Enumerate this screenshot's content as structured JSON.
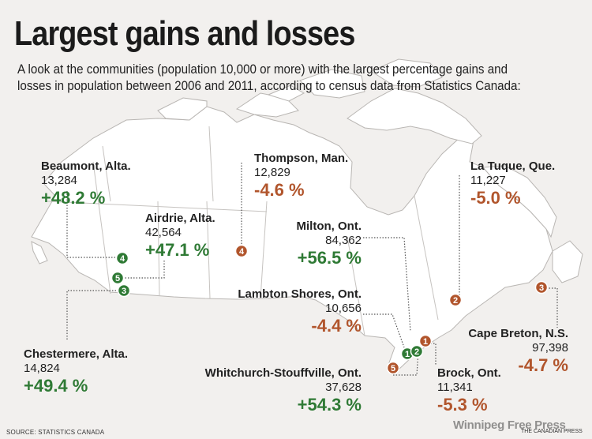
{
  "title": "Largest gains and losses",
  "subtitle": "A look at the communities (population 10,000 or more) with the largest percentage gains and losses in population between 2006 and 2011, according to census data from Statistics Canada:",
  "communities": {
    "beaumont": {
      "name": "Beaumont, Alta.",
      "population": "13,284",
      "change": "+48.2 %",
      "rank": "4",
      "type": "gain"
    },
    "airdrie": {
      "name": "Airdrie, Alta.",
      "population": "42,564",
      "change": "+47.1 %",
      "rank": "5",
      "type": "gain"
    },
    "chestermere": {
      "name": "Chestermere, Alta.",
      "population": "14,824",
      "change": "+49.4 %",
      "rank": "3",
      "type": "gain"
    },
    "thompson": {
      "name": "Thompson, Man.",
      "population": "12,829",
      "change": "-4.6 %",
      "rank": "4",
      "type": "loss"
    },
    "milton": {
      "name": "Milton, Ont.",
      "population": "84,362",
      "change": "+56.5 %",
      "rank": "1",
      "type": "gain"
    },
    "lambton": {
      "name": "Lambton Shores, Ont.",
      "population": "10,656",
      "change": "-4.4 %",
      "rank": "5",
      "type": "loss"
    },
    "whitchurch": {
      "name": "Whitchurch-Stouffville, Ont.",
      "population": "37,628",
      "change": "+54.3 %",
      "rank": "2",
      "type": "gain"
    },
    "latuque": {
      "name": "La Tuque, Que.",
      "population": "11,227",
      "change": "-5.0 %",
      "rank": "2",
      "type": "loss"
    },
    "capebreton": {
      "name": "Cape Breton, N.S.",
      "population": "97,398",
      "change": "-4.7 %",
      "rank": "3",
      "type": "loss"
    },
    "brock": {
      "name": "Brock, Ont.",
      "population": "11,341",
      "change": "-5.3 %",
      "rank": "1",
      "type": "loss"
    }
  },
  "colors": {
    "gain": "#2f7a35",
    "loss": "#b1552c",
    "land": "#ffffff",
    "border": "#b9b6b3"
  },
  "source": "SOURCE: STATISTICS CANADA",
  "credit": "THE CANADIAN PRESS",
  "watermark": "Winnipeg Free Press"
}
